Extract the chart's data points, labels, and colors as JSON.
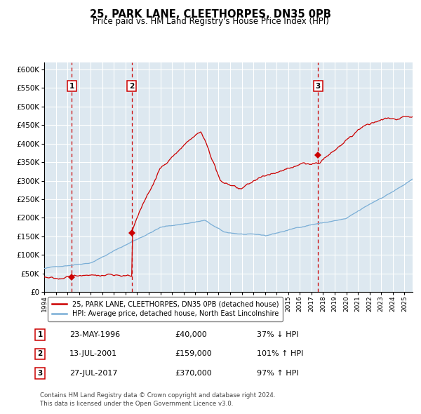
{
  "title": "25, PARK LANE, CLEETHORPES, DN35 0PB",
  "subtitle": "Price paid vs. HM Land Registry's House Price Index (HPI)",
  "footer_line1": "Contains HM Land Registry data © Crown copyright and database right 2024.",
  "footer_line2": "This data is licensed under the Open Government Licence v3.0.",
  "legend_entry1": "25, PARK LANE, CLEETHORPES, DN35 0PB (detached house)",
  "legend_entry2": "HPI: Average price, detached house, North East Lincolnshire",
  "sales": [
    {
      "num": 1,
      "date": "23-MAY-1996",
      "price": 40000,
      "pct": "37%",
      "dir": "↓",
      "x_year": 1996.38
    },
    {
      "num": 2,
      "date": "13-JUL-2001",
      "price": 159000,
      "pct": "101%",
      "dir": "↑",
      "x_year": 2001.53
    },
    {
      "num": 3,
      "date": "27-JUL-2017",
      "price": 370000,
      "pct": "97%",
      "dir": "↑",
      "x_year": 2017.57
    }
  ],
  "property_color": "#cc0000",
  "hpi_color": "#7aaed6",
  "vline_color": "#cc0000",
  "bg_color": "#dde8f0",
  "grid_color": "#ffffff",
  "ylim": [
    0,
    620000
  ],
  "xlim_start": 1994.0,
  "xlim_end": 2025.7,
  "yticks": [
    0,
    50000,
    100000,
    150000,
    200000,
    250000,
    300000,
    350000,
    400000,
    450000,
    500000,
    550000,
    600000
  ]
}
